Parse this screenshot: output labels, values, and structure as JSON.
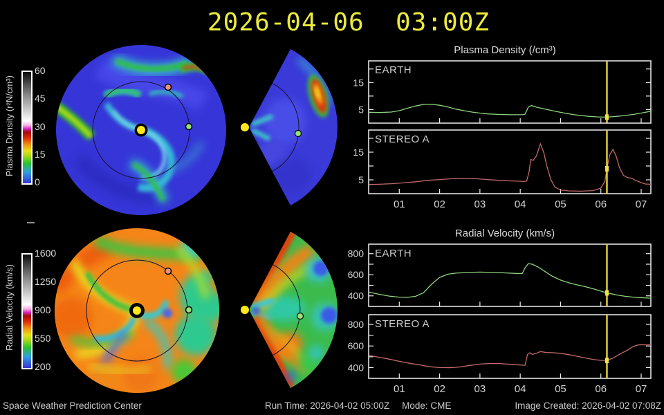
{
  "title": "2026-04-06  03:00Z",
  "footer": {
    "left": "Space Weather Prediction Center",
    "run_time": "Run Time: 2026-04-02 05:00Z",
    "mode": "Mode: CME",
    "created": "Image Created: 2026-04-02 07:08Z"
  },
  "colors": {
    "title_yellow": "#ecec3c",
    "earth_line": "#8fd47f",
    "stereo_line": "#c46a6a",
    "now_line": "#e8d840",
    "marker": "#f2e43c",
    "frame": "#efefef",
    "tick_text": "#d6d6d6",
    "sun": "#ffe81a",
    "earth_dot": "#97e07b",
    "stereo_dot": "#f09080"
  },
  "colorbars": [
    {
      "label": "Plasma Density (r²N/cm³)",
      "ticks": [
        "60",
        "45",
        "30",
        "15",
        "0"
      ]
    },
    {
      "label": "Radial Velocity (km/s)",
      "ticks": [
        "1600",
        "1250",
        "900",
        "550",
        "200"
      ]
    }
  ],
  "polar_maps": [
    {
      "name": "plasma-density-equatorial",
      "markers": [
        "sun",
        "earth",
        "stereo-a"
      ]
    },
    {
      "name": "plasma-density-meridional",
      "markers": [
        "sun",
        "earth"
      ]
    },
    {
      "name": "radial-velocity-equatorial",
      "markers": [
        "sun",
        "earth",
        "stereo-a"
      ]
    },
    {
      "name": "radial-velocity-meridional",
      "markers": [
        "sun",
        "earth"
      ]
    }
  ],
  "chart_data": [
    {
      "type": "line",
      "title": "Plasma Density (/cm³)",
      "xlabel": "",
      "ylabel": "",
      "xlim": [
        0.24,
        7.24
      ],
      "ylim": [
        0,
        23
      ],
      "grid": false,
      "now_x": 6.15,
      "yticks": [
        {
          "v": 5,
          "label": "5"
        },
        {
          "v": 10,
          "label": ""
        },
        {
          "v": 15,
          "label": "15"
        },
        {
          "v": 20,
          "label": ""
        }
      ],
      "xticks": [
        {
          "v": 1,
          "label": "01"
        },
        {
          "v": 2,
          "label": "02"
        },
        {
          "v": 3,
          "label": "03"
        },
        {
          "v": 4,
          "label": "04"
        },
        {
          "v": 5,
          "label": "05"
        },
        {
          "v": 6,
          "label": "06"
        },
        {
          "v": 7,
          "label": "07"
        }
      ],
      "series": [
        {
          "name": "EARTH",
          "color": "#8fd47f",
          "points": [
            [
              0.25,
              4.0
            ],
            [
              0.5,
              3.9
            ],
            [
              0.8,
              4.1
            ],
            [
              1.0,
              4.6
            ],
            [
              1.2,
              5.5
            ],
            [
              1.4,
              6.3
            ],
            [
              1.6,
              6.9
            ],
            [
              1.8,
              7.0
            ],
            [
              2.0,
              6.6
            ],
            [
              2.2,
              6.0
            ],
            [
              2.4,
              5.2
            ],
            [
              2.6,
              4.6
            ],
            [
              2.8,
              4.1
            ],
            [
              3.0,
              3.7
            ],
            [
              3.2,
              3.4
            ],
            [
              3.5,
              3.2
            ],
            [
              3.8,
              3.1
            ],
            [
              4.05,
              3.1
            ],
            [
              4.12,
              3.3
            ],
            [
              4.2,
              5.9
            ],
            [
              4.28,
              6.5
            ],
            [
              4.4,
              5.9
            ],
            [
              4.55,
              5.4
            ],
            [
              4.7,
              4.9
            ],
            [
              4.9,
              4.3
            ],
            [
              5.1,
              3.7
            ],
            [
              5.3,
              3.2
            ],
            [
              5.5,
              2.8
            ],
            [
              5.7,
              2.5
            ],
            [
              5.9,
              2.3
            ],
            [
              6.15,
              2.2
            ],
            [
              6.4,
              2.5
            ],
            [
              6.6,
              2.8
            ],
            [
              6.8,
              3.2
            ],
            [
              7.0,
              3.7
            ],
            [
              7.24,
              4.4
            ]
          ]
        },
        {
          "name": "STEREO A",
          "color": "#c46a6a",
          "points": [
            [
              0.25,
              3.3
            ],
            [
              0.5,
              3.4
            ],
            [
              0.8,
              3.6
            ],
            [
              1.1,
              3.9
            ],
            [
              1.4,
              4.3
            ],
            [
              1.7,
              4.8
            ],
            [
              2.0,
              5.1
            ],
            [
              2.3,
              5.4
            ],
            [
              2.6,
              5.5
            ],
            [
              2.9,
              5.4
            ],
            [
              3.2,
              5.1
            ],
            [
              3.5,
              4.8
            ],
            [
              3.8,
              4.6
            ],
            [
              4.0,
              4.5
            ],
            [
              4.1,
              4.4
            ],
            [
              4.16,
              4.6
            ],
            [
              4.22,
              8.0
            ],
            [
              4.26,
              12.4
            ],
            [
              4.32,
              12.0
            ],
            [
              4.4,
              13.6
            ],
            [
              4.5,
              18.0
            ],
            [
              4.58,
              15.0
            ],
            [
              4.66,
              10.0
            ],
            [
              4.76,
              5.0
            ],
            [
              4.86,
              2.4
            ],
            [
              5.0,
              1.3
            ],
            [
              5.2,
              1.0
            ],
            [
              5.5,
              0.9
            ],
            [
              5.8,
              1.1
            ],
            [
              6.0,
              2.0
            ],
            [
              6.1,
              4.5
            ],
            [
              6.15,
              9.0
            ],
            [
              6.22,
              14.0
            ],
            [
              6.3,
              16.0
            ],
            [
              6.38,
              13.5
            ],
            [
              6.46,
              9.5
            ],
            [
              6.56,
              6.6
            ],
            [
              6.66,
              5.8
            ],
            [
              6.76,
              5.6
            ],
            [
              6.86,
              4.8
            ],
            [
              7.0,
              4.0
            ],
            [
              7.1,
              3.5
            ],
            [
              7.24,
              3.4
            ]
          ]
        }
      ]
    },
    {
      "type": "line",
      "title": "Radial Velocity (km/s)",
      "xlabel": "",
      "ylabel": "",
      "xlim": [
        0.24,
        7.24
      ],
      "ylim": [
        300,
        890
      ],
      "grid": false,
      "now_x": 6.15,
      "yticks": [
        {
          "v": 400,
          "label": "400"
        },
        {
          "v": 500,
          "label": ""
        },
        {
          "v": 600,
          "label": "600"
        },
        {
          "v": 700,
          "label": ""
        },
        {
          "v": 800,
          "label": "800"
        }
      ],
      "xticks": [
        {
          "v": 1,
          "label": "01"
        },
        {
          "v": 2,
          "label": "02"
        },
        {
          "v": 3,
          "label": "03"
        },
        {
          "v": 4,
          "label": "04"
        },
        {
          "v": 5,
          "label": "05"
        },
        {
          "v": 6,
          "label": "06"
        },
        {
          "v": 7,
          "label": "07"
        }
      ],
      "series": [
        {
          "name": "EARTH",
          "color": "#8fd47f",
          "points": [
            [
              0.25,
              435
            ],
            [
              0.5,
              415
            ],
            [
              0.75,
              398
            ],
            [
              1.0,
              388
            ],
            [
              1.2,
              386
            ],
            [
              1.4,
              395
            ],
            [
              1.6,
              430
            ],
            [
              1.8,
              510
            ],
            [
              2.0,
              575
            ],
            [
              2.2,
              605
            ],
            [
              2.4,
              615
            ],
            [
              2.7,
              622
            ],
            [
              3.0,
              625
            ],
            [
              3.3,
              622
            ],
            [
              3.6,
              618
            ],
            [
              3.9,
              613
            ],
            [
              4.05,
              612
            ],
            [
              4.12,
              665
            ],
            [
              4.2,
              705
            ],
            [
              4.3,
              700
            ],
            [
              4.45,
              672
            ],
            [
              4.6,
              635
            ],
            [
              4.8,
              585
            ],
            [
              5.0,
              550
            ],
            [
              5.2,
              525
            ],
            [
              5.4,
              505
            ],
            [
              5.6,
              488
            ],
            [
              5.8,
              468
            ],
            [
              6.0,
              445
            ],
            [
              6.15,
              428
            ],
            [
              6.4,
              408
            ],
            [
              6.6,
              396
            ],
            [
              6.8,
              388
            ],
            [
              7.0,
              383
            ],
            [
              7.24,
              378
            ]
          ]
        },
        {
          "name": "STEREO A",
          "color": "#c46a6a",
          "points": [
            [
              0.25,
              512
            ],
            [
              0.5,
              495
            ],
            [
              0.75,
              478
            ],
            [
              1.0,
              458
            ],
            [
              1.25,
              440
            ],
            [
              1.5,
              425
            ],
            [
              1.75,
              408
            ],
            [
              2.0,
              400
            ],
            [
              2.25,
              399
            ],
            [
              2.5,
              405
            ],
            [
              2.75,
              420
            ],
            [
              3.0,
              432
            ],
            [
              3.25,
              438
            ],
            [
              3.5,
              437
            ],
            [
              3.75,
              430
            ],
            [
              4.0,
              424
            ],
            [
              4.12,
              421
            ],
            [
              4.18,
              520
            ],
            [
              4.24,
              538
            ],
            [
              4.3,
              522
            ],
            [
              4.4,
              532
            ],
            [
              4.5,
              548
            ],
            [
              4.65,
              540
            ],
            [
              4.8,
              538
            ],
            [
              5.0,
              532
            ],
            [
              5.2,
              520
            ],
            [
              5.4,
              505
            ],
            [
              5.6,
              490
            ],
            [
              5.8,
              476
            ],
            [
              6.0,
              467
            ],
            [
              6.15,
              466
            ],
            [
              6.3,
              488
            ],
            [
              6.5,
              530
            ],
            [
              6.65,
              560
            ],
            [
              6.8,
              595
            ],
            [
              6.9,
              608
            ],
            [
              7.0,
              612
            ],
            [
              7.1,
              610
            ],
            [
              7.24,
              611
            ]
          ]
        }
      ]
    }
  ]
}
